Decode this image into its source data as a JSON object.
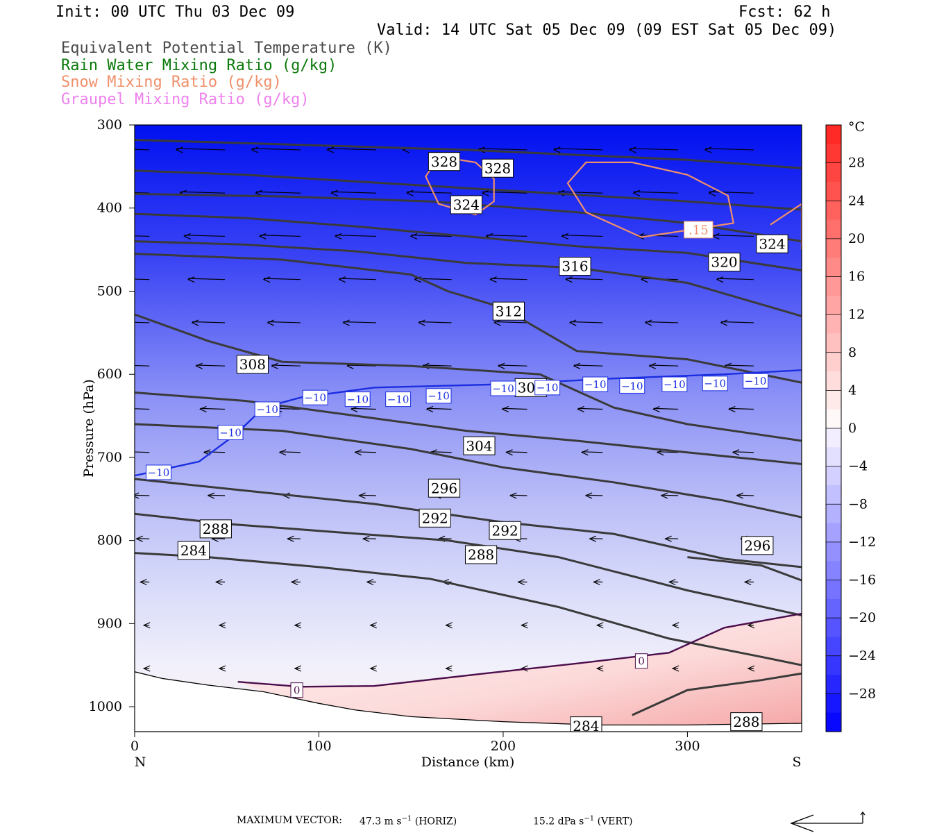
{
  "header": {
    "init": "Init: 00 UTC Thu 03 Dec 09",
    "fcst": "Fcst:   62 h",
    "valid": "Valid: 14 UTC Sat 05 Dec 09 (09 EST Sat 05 Dec 09)"
  },
  "fields": [
    {
      "label": "Equivalent Potential Temperature (K)",
      "color": "#4a4a4a"
    },
    {
      "label": "Rain Water Mixing Ratio (g/kg)",
      "color": "#0b7a0b"
    },
    {
      "label": "Snow Mixing Ratio (g/kg)",
      "color": "#f0906a"
    },
    {
      "label": "Graupel Mixing Ratio (g/kg)",
      "color": "#ee82ee"
    }
  ],
  "chart_data": {
    "type": "heatmap",
    "xlabel": "Distance (km)",
    "ylabel": "Pressure (hPa)",
    "xlim": [
      0,
      362
    ],
    "ylim": [
      1030,
      300
    ],
    "x_ticks": [
      0,
      100,
      200,
      300
    ],
    "y_ticks": [
      300,
      400,
      500,
      600,
      700,
      800,
      900,
      1000
    ],
    "end_labels": {
      "left": "N",
      "right": "S"
    },
    "colorbar": {
      "unit": "°C",
      "ticks": [
        28,
        24,
        20,
        16,
        12,
        8,
        4,
        0,
        -4,
        -8,
        -12,
        -16,
        -20,
        -24,
        -28
      ],
      "tick_labels": [
        "28",
        "24",
        "20",
        "16",
        "12",
        "8",
        "4",
        "0",
        "−4",
        "−8",
        "−12",
        "−16",
        "−20",
        "−24",
        "−28"
      ],
      "range": [
        -32,
        32
      ]
    },
    "theta_e_contours": [
      {
        "label": "328",
        "points": [
          [
            0,
            318
          ],
          [
            60,
            322
          ],
          [
            120,
            326
          ],
          [
            180,
            330
          ],
          [
            240,
            336
          ],
          [
            300,
            342
          ],
          [
            362,
            352
          ]
        ],
        "label_at": [
          [
            168,
            344
          ],
          [
            197,
            352
          ]
        ]
      },
      {
        "label": "324",
        "points": [
          [
            0,
            355
          ],
          [
            60,
            360
          ],
          [
            120,
            368
          ],
          [
            180,
            376
          ],
          [
            240,
            384
          ],
          [
            300,
            392
          ],
          [
            362,
            402
          ]
        ],
        "label_at": [
          [
            180,
            396
          ]
        ]
      },
      {
        "label": "324",
        "points": [
          [
            0,
            383
          ],
          [
            80,
            386
          ],
          [
            160,
            392
          ],
          [
            240,
            405
          ],
          [
            300,
            418
          ],
          [
            362,
            440
          ]
        ],
        "label_at": [
          [
            346,
            443
          ]
        ]
      },
      {
        "label": "320",
        "points": [
          [
            0,
            407
          ],
          [
            60,
            412
          ],
          [
            120,
            422
          ],
          [
            180,
            434
          ],
          [
            240,
            446
          ],
          [
            300,
            454
          ],
          [
            362,
            475
          ]
        ],
        "label_at": [
          [
            320,
            465
          ]
        ]
      },
      {
        "label": "316",
        "points": [
          [
            0,
            440
          ],
          [
            60,
            444
          ],
          [
            120,
            452
          ],
          [
            180,
            466
          ],
          [
            240,
            472
          ],
          [
            300,
            490
          ],
          [
            362,
            530
          ]
        ],
        "label_at": [
          [
            239,
            470
          ]
        ]
      },
      {
        "label": "312",
        "points": [
          [
            0,
            455
          ],
          [
            80,
            462
          ],
          [
            150,
            480
          ],
          [
            170,
            500
          ],
          [
            200,
            520
          ],
          [
            215,
            540
          ],
          [
            240,
            572
          ],
          [
            300,
            582
          ],
          [
            362,
            610
          ]
        ],
        "label_at": [
          [
            203,
            524
          ]
        ]
      },
      {
        "label": "308",
        "points": [
          [
            0,
            528
          ],
          [
            40,
            560
          ],
          [
            80,
            585
          ],
          [
            150,
            590
          ],
          [
            220,
            600
          ],
          [
            260,
            640
          ],
          [
            300,
            660
          ],
          [
            362,
            680
          ]
        ],
        "label_at": [
          [
            64,
            588
          ],
          [
            215,
            616
          ]
        ]
      },
      {
        "label": "304",
        "points": [
          [
            0,
            622
          ],
          [
            60,
            632
          ],
          [
            120,
            650
          ],
          [
            180,
            668
          ],
          [
            240,
            680
          ],
          [
            300,
            694
          ],
          [
            362,
            708
          ]
        ],
        "label_at": [
          [
            187,
            686
          ]
        ]
      },
      {
        "label": "296",
        "points": [
          [
            0,
            660
          ],
          [
            80,
            668
          ],
          [
            150,
            690
          ],
          [
            200,
            712
          ],
          [
            260,
            730
          ],
          [
            320,
            752
          ],
          [
            362,
            772
          ]
        ],
        "label_at": [
          [
            168,
            737
          ]
        ]
      },
      {
        "label": "292",
        "points": [
          [
            0,
            726
          ],
          [
            60,
            740
          ],
          [
            130,
            756
          ],
          [
            200,
            778
          ],
          [
            260,
            792
          ],
          [
            320,
            822
          ],
          [
            362,
            832
          ]
        ],
        "label_at": [
          [
            163,
            773
          ],
          [
            201,
            788
          ]
        ]
      },
      {
        "label": "288",
        "points": [
          [
            0,
            768
          ],
          [
            50,
            780
          ],
          [
            110,
            790
          ],
          [
            170,
            800
          ],
          [
            230,
            820
          ],
          [
            300,
            860
          ],
          [
            362,
            890
          ]
        ],
        "label_at": [
          [
            44,
            786
          ],
          [
            188,
            817
          ]
        ]
      },
      {
        "label": "284",
        "points": [
          [
            0,
            815
          ],
          [
            40,
            820
          ],
          [
            100,
            832
          ],
          [
            160,
            846
          ],
          [
            230,
            880
          ],
          [
            290,
            918
          ],
          [
            340,
            940
          ],
          [
            362,
            950
          ]
        ],
        "label_at": [
          [
            32,
            812
          ],
          [
            245,
            1023
          ]
        ]
      },
      {
        "label": "296",
        "points": [
          [
            300,
            820
          ],
          [
            340,
            830
          ],
          [
            362,
            848
          ]
        ],
        "label_at": [
          [
            338,
            806
          ]
        ]
      },
      {
        "label": "288",
        "points": [
          [
            270,
            1010
          ],
          [
            300,
            980
          ],
          [
            340,
            968
          ],
          [
            362,
            960
          ]
        ],
        "label_at": [
          [
            332,
            1018
          ]
        ]
      }
    ],
    "isotherms": [
      {
        "label": "−10",
        "points": [
          [
            0,
            722
          ],
          [
            35,
            705
          ],
          [
            55,
            672
          ],
          [
            70,
            640
          ],
          [
            90,
            628
          ],
          [
            130,
            616
          ],
          [
            200,
            612
          ],
          [
            260,
            605
          ],
          [
            320,
            600
          ],
          [
            362,
            595
          ]
        ],
        "label_at": [
          [
            13,
            718
          ],
          [
            52,
            670
          ],
          [
            72,
            642
          ],
          [
            98,
            628
          ],
          [
            121,
            630
          ],
          [
            143,
            630
          ],
          [
            165,
            626
          ],
          [
            200,
            617
          ],
          [
            224,
            616
          ],
          [
            250,
            612
          ],
          [
            270,
            614
          ],
          [
            293,
            612
          ],
          [
            315,
            611
          ],
          [
            337,
            608
          ]
        ]
      },
      {
        "label": "0",
        "points": [
          [
            56,
            970
          ],
          [
            90,
            976
          ],
          [
            130,
            975
          ],
          [
            190,
            960
          ],
          [
            240,
            948
          ],
          [
            290,
            935
          ],
          [
            320,
            905
          ],
          [
            362,
            888
          ]
        ],
        "label_at": [
          [
            88,
            980
          ],
          [
            275,
            945
          ]
        ]
      }
    ],
    "snow_contours": [
      {
        "label": ".15",
        "points": [
          [
            158,
            362
          ],
          [
            165,
            395
          ],
          [
            185,
            408
          ],
          [
            195,
            392
          ],
          [
            195,
            365
          ],
          [
            185,
            345
          ],
          [
            165,
            338
          ]
        ],
        "label_at": []
      },
      {
        "label": ".15",
        "points": [
          [
            235,
            370
          ],
          [
            245,
            405
          ],
          [
            275,
            435
          ],
          [
            290,
            430
          ],
          [
            325,
            418
          ],
          [
            322,
            385
          ],
          [
            300,
            360
          ],
          [
            270,
            345
          ],
          [
            245,
            345
          ]
        ],
        "label_at": [
          [
            306,
            426
          ]
        ]
      },
      {
        "label": ".15",
        "points": [
          [
            345,
            420
          ],
          [
            362,
            395
          ],
          [
            362,
            450
          ]
        ],
        "label_at": []
      }
    ],
    "footer": {
      "prefix": "MAXIMUM VECTOR:",
      "horiz_value": "47.3 m s",
      "horiz_exp": "−1",
      "horiz_tag": "(HORIZ)",
      "vert_value": "15.2 dPa s",
      "vert_exp": "−1",
      "vert_tag": "(VERT)"
    }
  }
}
